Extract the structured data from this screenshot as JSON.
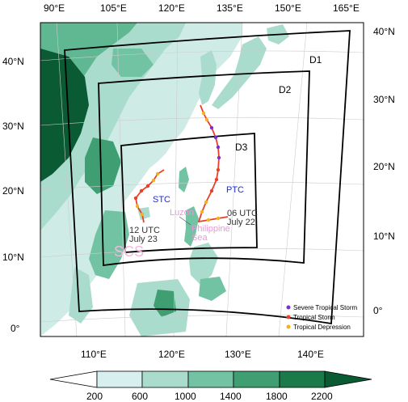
{
  "map": {
    "top_lon_labels": [
      "90°E",
      "105°E",
      "120°E",
      "135°E",
      "150°E",
      "165°E"
    ],
    "bottom_lon_labels": [
      "110°E",
      "120°E",
      "130°E",
      "140°E"
    ],
    "left_lat_labels": [
      "40°N",
      "30°N",
      "20°N",
      "10°N",
      "0°"
    ],
    "right_lat_labels": [
      "40°N",
      "30°N",
      "20°N",
      "10°N",
      "0°"
    ],
    "domains": [
      "D1",
      "D2",
      "D3"
    ],
    "storm_labels": {
      "stc": "STC",
      "ptc": "PTC",
      "stc_time": "12 UTC",
      "stc_date": "July 23",
      "ptc_time": "06 UTC",
      "ptc_date": "July 22"
    },
    "place_labels": {
      "luzon": "Luzon",
      "philippine_1": "Philippine",
      "philippine_2": "Sea",
      "scs": "SCS"
    },
    "legend": [
      {
        "label": "Severe Tropical Storm",
        "color": "#7b2fd0"
      },
      {
        "label": "Tropical Storm",
        "color": "#e8402a"
      },
      {
        "label": "Tropical Depression",
        "color": "#f3b21d"
      }
    ],
    "colorbar": {
      "ticks": [
        "200",
        "600",
        "1000",
        "1400",
        "1800",
        "2200"
      ],
      "colors": [
        "#ffffff",
        "#d7efee",
        "#a9dccd",
        "#72c3a3",
        "#3f9f72",
        "#1b7a49",
        "#0a5a33"
      ]
    }
  }
}
